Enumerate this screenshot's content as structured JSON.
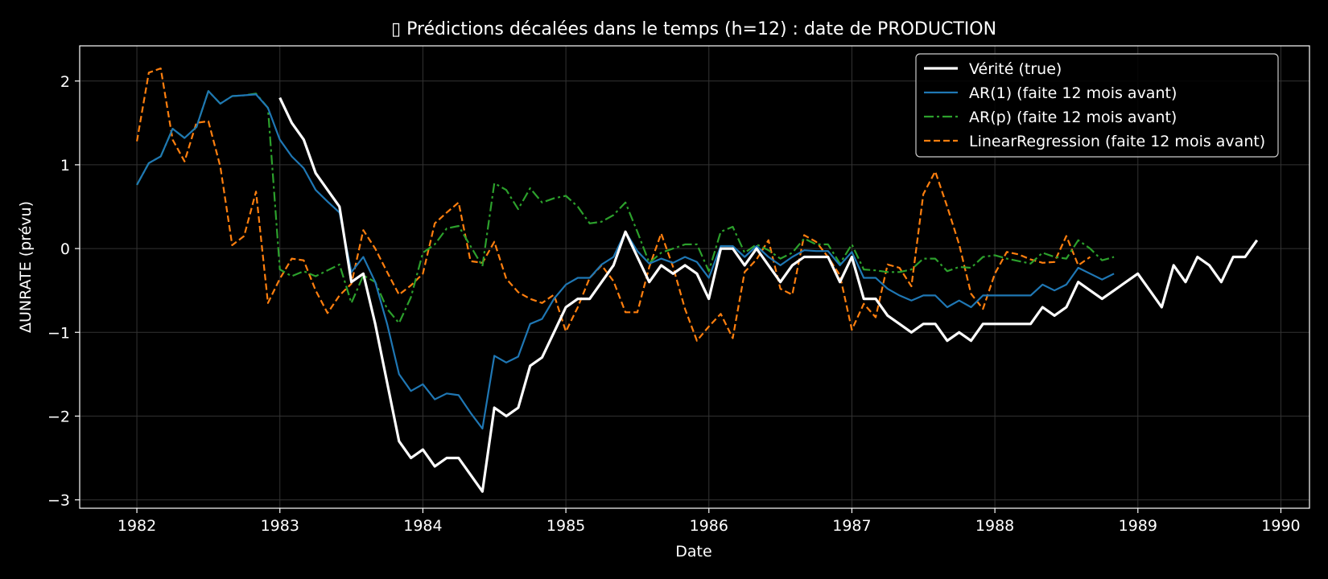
{
  "chart_data": {
    "type": "line",
    "title": "▯ Prédictions décalées dans le temps (h=12) : date de PRODUCTION",
    "xlabel": "Date",
    "ylabel": "ΔUNRATE (prévu)",
    "xlim": [
      1981.6,
      1990.2
    ],
    "ylim": [
      -3.1,
      2.42
    ],
    "x_ticks": [
      1982,
      1983,
      1984,
      1985,
      1986,
      1987,
      1988,
      1989,
      1990
    ],
    "x_tick_labels": [
      "1982",
      "1983",
      "1984",
      "1985",
      "1986",
      "1987",
      "1988",
      "1989",
      "1990"
    ],
    "y_ticks": [
      -3,
      -2,
      -1,
      0,
      1,
      2
    ],
    "y_tick_labels": [
      "−3",
      "−2",
      "−1",
      "0",
      "1",
      "2"
    ],
    "grid": true,
    "legend_position": "top-right",
    "background": "#000000",
    "series": [
      {
        "name": "Vérité (true)",
        "color": "#ffffff",
        "style": "solid-thick",
        "x_start": 1983.0,
        "x_step": 0.08333,
        "values": [
          1.8,
          1.5,
          1.3,
          0.9,
          0.7,
          0.5,
          -0.4,
          -0.3,
          -0.9,
          -1.6,
          -2.3,
          -2.5,
          -2.4,
          -2.6,
          -2.5,
          -2.5,
          -2.7,
          -2.9,
          -1.9,
          -2.0,
          -1.9,
          -1.4,
          -1.3,
          -1.0,
          -0.7,
          -0.6,
          -0.6,
          -0.4,
          -0.2,
          0.2,
          -0.1,
          -0.4,
          -0.2,
          -0.3,
          -0.2,
          -0.3,
          -0.6,
          0.0,
          0.0,
          -0.2,
          0.0,
          -0.2,
          -0.4,
          -0.2,
          -0.1,
          -0.1,
          -0.1,
          -0.4,
          -0.1,
          -0.6,
          -0.6,
          -0.8,
          -0.9,
          -1.0,
          -0.9,
          -0.9,
          -1.1,
          -1.0,
          -1.1,
          -0.9,
          -0.9,
          -0.9,
          -0.9,
          -0.9,
          -0.7,
          -0.8,
          -0.7,
          -0.4,
          -0.5,
          -0.6,
          -0.5,
          -0.4,
          -0.3,
          -0.5,
          -0.7,
          -0.2,
          -0.4,
          -0.1,
          -0.2,
          -0.4,
          -0.1,
          -0.1,
          0.1
        ]
      },
      {
        "name": "AR(1) (faite 12 mois avant)",
        "color": "#1f77b4",
        "style": "solid",
        "x_start": 1982.0,
        "x_step": 0.08333,
        "values": [
          0.76,
          1.02,
          1.1,
          1.43,
          1.32,
          1.45,
          1.88,
          1.73,
          1.82,
          1.83,
          1.84,
          1.68,
          1.3,
          1.1,
          0.96,
          0.7,
          0.56,
          0.43,
          -0.28,
          -0.1,
          -0.4,
          -0.9,
          -1.5,
          -1.7,
          -1.62,
          -1.8,
          -1.73,
          -1.75,
          -1.96,
          -2.15,
          -1.28,
          -1.36,
          -1.29,
          -0.9,
          -0.84,
          -0.6,
          -0.43,
          -0.35,
          -0.35,
          -0.19,
          -0.1,
          0.2,
          -0.03,
          -0.18,
          -0.12,
          -0.17,
          -0.1,
          -0.16,
          -0.35,
          0.03,
          0.03,
          -0.1,
          0.03,
          -0.1,
          -0.2,
          -0.1,
          -0.02,
          -0.03,
          -0.03,
          -0.2,
          -0.04,
          -0.35,
          -0.35,
          -0.48,
          -0.56,
          -0.62,
          -0.56,
          -0.56,
          -0.7,
          -0.62,
          -0.7,
          -0.56,
          -0.56,
          -0.56,
          -0.56,
          -0.56,
          -0.43,
          -0.5,
          -0.43,
          -0.23,
          -0.3,
          -0.37,
          -0.3
        ]
      },
      {
        "name": "AR(p) (faite 12 mois avant)",
        "color": "#2ca02c",
        "style": "dashdot",
        "x_start": 1982.0,
        "x_step": 0.08333,
        "values": [
          0.76,
          1.02,
          1.1,
          1.43,
          1.32,
          1.45,
          1.88,
          1.73,
          1.82,
          1.83,
          1.85,
          1.68,
          -0.25,
          -0.33,
          -0.27,
          -0.33,
          -0.26,
          -0.19,
          -0.65,
          -0.32,
          -0.4,
          -0.72,
          -0.89,
          -0.58,
          -0.05,
          0.05,
          0.24,
          0.27,
          0.03,
          -0.21,
          0.78,
          0.7,
          0.47,
          0.72,
          0.55,
          0.6,
          0.63,
          0.5,
          0.3,
          0.32,
          0.4,
          0.55,
          0.2,
          -0.17,
          -0.05,
          0.0,
          0.05,
          0.05,
          -0.27,
          0.2,
          0.26,
          -0.05,
          0.05,
          -0.02,
          -0.12,
          -0.05,
          0.12,
          0.05,
          0.05,
          -0.18,
          0.05,
          -0.25,
          -0.26,
          -0.28,
          -0.28,
          -0.25,
          -0.12,
          -0.12,
          -0.27,
          -0.22,
          -0.23,
          -0.1,
          -0.08,
          -0.12,
          -0.15,
          -0.18,
          -0.05,
          -0.1,
          -0.12,
          0.1,
          0.0,
          -0.14,
          -0.1
        ]
      },
      {
        "name": "LinearRegression (faite 12 mois avant)",
        "color": "#ff7f0e",
        "style": "dashed",
        "x_start": 1982.0,
        "x_step": 0.08333,
        "values": [
          1.28,
          2.1,
          2.15,
          1.3,
          1.04,
          1.5,
          1.52,
          0.98,
          0.04,
          0.15,
          0.68,
          -0.65,
          -0.36,
          -0.12,
          -0.14,
          -0.5,
          -0.77,
          -0.56,
          -0.42,
          0.22,
          0.0,
          -0.28,
          -0.55,
          -0.44,
          -0.3,
          0.3,
          0.43,
          0.55,
          -0.15,
          -0.17,
          0.08,
          -0.36,
          -0.52,
          -0.6,
          -0.65,
          -0.55,
          -0.99,
          -0.7,
          -0.35,
          -0.2,
          -0.39,
          -0.76,
          -0.76,
          -0.22,
          0.18,
          -0.22,
          -0.72,
          -1.1,
          -0.93,
          -0.78,
          -1.07,
          -0.28,
          -0.13,
          0.1,
          -0.48,
          -0.55,
          0.16,
          0.08,
          -0.1,
          -0.32,
          -0.97,
          -0.66,
          -0.82,
          -0.19,
          -0.23,
          -0.45,
          0.65,
          0.92,
          0.5,
          0.05,
          -0.54,
          -0.72,
          -0.3,
          -0.04,
          -0.07,
          -0.13,
          -0.17,
          -0.16,
          0.15,
          -0.2,
          -0.1
        ]
      }
    ]
  }
}
